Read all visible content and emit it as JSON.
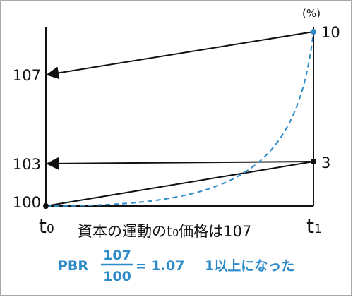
{
  "diagram": {
    "unit_label": "(%)",
    "y_labels": {
      "top": "107",
      "middle": "103",
      "bottom": "100"
    },
    "right_labels": {
      "top": "10",
      "middle": "3"
    },
    "x_labels": {
      "start_base": "t",
      "start_sub": "0",
      "end_base": "t",
      "end_sub": "1"
    },
    "caption": {
      "part1": "資本の運動のt",
      "sub": "0",
      "part2": "価格は107"
    },
    "formula": {
      "prefix": "PBR",
      "numerator": "107",
      "denominator": "100",
      "result": "= 1.07",
      "note": "1以上になった"
    },
    "colors": {
      "line": "#111111",
      "curve": "#2e8bc9",
      "accent_text": "#2e8bc9",
      "border": "#8c8c8c"
    }
  }
}
